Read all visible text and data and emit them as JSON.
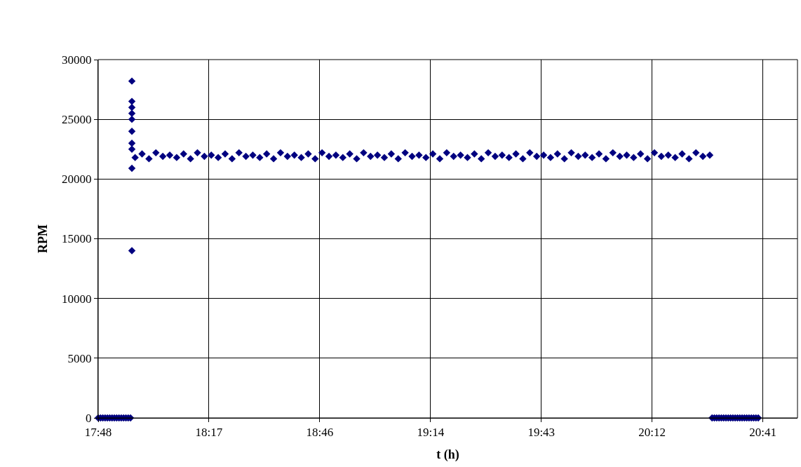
{
  "chart_data": {
    "type": "scatter",
    "xlabel": "t (h)",
    "ylabel": "RPM",
    "xlim": [
      17.8,
      20.83
    ],
    "xticks": [
      {
        "value": 17.8,
        "label": "17:48"
      },
      {
        "value": 18.28,
        "label": "18:17"
      },
      {
        "value": 18.76,
        "label": "18:46"
      },
      {
        "value": 19.24,
        "label": "19:14"
      },
      {
        "value": 19.72,
        "label": "19:43"
      },
      {
        "value": 20.2,
        "label": "20:12"
      },
      {
        "value": 20.68,
        "label": "20:41"
      }
    ],
    "ylim": [
      0,
      30000
    ],
    "yticks": [
      0,
      5000,
      10000,
      15000,
      20000,
      25000,
      30000
    ],
    "grid": true,
    "marker": "diamond",
    "series": [
      {
        "color": "#000080",
        "x": [
          17.8,
          17.81,
          17.82,
          17.83,
          17.84,
          17.85,
          17.86,
          17.87,
          17.88,
          17.89,
          17.9,
          17.91,
          17.92,
          17.93,
          17.94,
          17.946,
          17.946,
          17.946,
          17.946,
          17.946,
          17.946,
          17.946,
          17.946,
          17.946,
          17.946,
          17.96,
          17.99,
          18.02,
          18.05,
          18.08,
          18.11,
          18.14,
          18.17,
          18.2,
          18.23,
          18.26,
          18.29,
          18.32,
          18.35,
          18.38,
          18.41,
          18.44,
          18.47,
          18.5,
          18.53,
          18.56,
          18.59,
          18.62,
          18.65,
          18.68,
          18.71,
          18.74,
          18.77,
          18.8,
          18.83,
          18.86,
          18.89,
          18.92,
          18.95,
          18.98,
          19.01,
          19.04,
          19.07,
          19.1,
          19.13,
          19.16,
          19.19,
          19.22,
          19.25,
          19.28,
          19.31,
          19.34,
          19.37,
          19.4,
          19.43,
          19.46,
          19.49,
          19.52,
          19.55,
          19.58,
          19.61,
          19.64,
          19.67,
          19.7,
          19.73,
          19.76,
          19.79,
          19.82,
          19.85,
          19.88,
          19.91,
          19.94,
          19.97,
          20.0,
          20.03,
          20.06,
          20.09,
          20.12,
          20.15,
          20.18,
          20.21,
          20.24,
          20.27,
          20.3,
          20.33,
          20.36,
          20.39,
          20.42,
          20.45,
          20.46,
          20.47,
          20.48,
          20.49,
          20.5,
          20.51,
          20.52,
          20.53,
          20.54,
          20.55,
          20.56,
          20.57,
          20.58,
          20.59,
          20.6,
          20.61,
          20.62,
          20.63,
          20.64,
          20.65,
          20.66
        ],
        "values": [
          0,
          0,
          0,
          0,
          0,
          0,
          0,
          0,
          0,
          0,
          0,
          0,
          0,
          0,
          0,
          14000,
          20900,
          22500,
          23000,
          24000,
          25000,
          25500,
          26000,
          26500,
          28200,
          21800,
          22100,
          21700,
          22200,
          21900,
          22000,
          21800,
          22100,
          21700,
          22200,
          21900,
          22000,
          21800,
          22100,
          21700,
          22200,
          21900,
          22000,
          21800,
          22100,
          21700,
          22200,
          21900,
          22000,
          21800,
          22100,
          21700,
          22200,
          21900,
          22000,
          21800,
          22100,
          21700,
          22200,
          21900,
          22000,
          21800,
          22100,
          21700,
          22200,
          21900,
          22000,
          21800,
          22100,
          21700,
          22200,
          21900,
          22000,
          21800,
          22100,
          21700,
          22200,
          21900,
          22000,
          21800,
          22100,
          21700,
          22200,
          21900,
          22000,
          21800,
          22100,
          21700,
          22200,
          21900,
          22000,
          21800,
          22100,
          21700,
          22200,
          21900,
          22000,
          21800,
          22100,
          21700,
          22200,
          21900,
          22000,
          21800,
          22100,
          21700,
          22200,
          21900,
          22000,
          0,
          0,
          0,
          0,
          0,
          0,
          0,
          0,
          0,
          0,
          0,
          0,
          0,
          0,
          0,
          0,
          0,
          0,
          0,
          0,
          0
        ]
      }
    ]
  }
}
